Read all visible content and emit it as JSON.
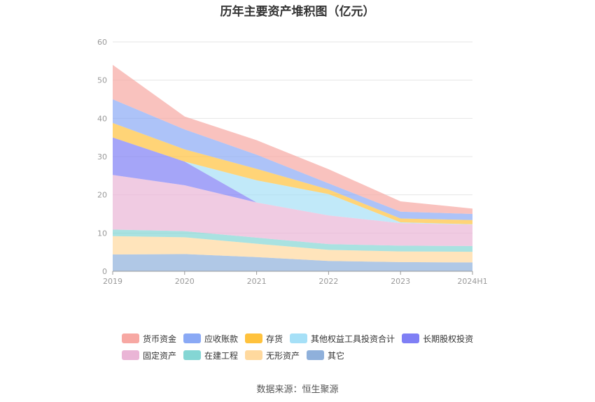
{
  "title": "历年主要资产堆积图（亿元）",
  "source": "数据来源：恒生聚源",
  "chart_data": {
    "type": "area",
    "stacked": true,
    "title": "历年主要资产堆积图（亿元）",
    "x": [
      "2019",
      "2020",
      "2021",
      "2022",
      "2023",
      "2024H1"
    ],
    "ylim": [
      0,
      60
    ],
    "yticks": [
      0,
      10,
      20,
      30,
      40,
      50,
      60
    ],
    "grid": true,
    "legend_position": "bottom",
    "series": [
      {
        "name": "其它",
        "color": "#8fb0db",
        "values": [
          4.4,
          4.5,
          3.7,
          2.7,
          2.4,
          2.3
        ]
      },
      {
        "name": "无形资产",
        "color": "#ffd99e",
        "values": [
          4.8,
          4.4,
          3.5,
          2.9,
          2.8,
          2.8
        ]
      },
      {
        "name": "在建工程",
        "color": "#84d6d4",
        "values": [
          1.7,
          1.6,
          1.6,
          1.5,
          1.5,
          1.5
        ]
      },
      {
        "name": "固定资产",
        "color": "#eab5d6",
        "values": [
          14.3,
          12.0,
          9.2,
          7.5,
          5.9,
          5.6
        ]
      },
      {
        "name": "长期股权投资",
        "color": "#7f7ff5",
        "values": [
          9.8,
          6.2,
          0.0,
          0.0,
          0.0,
          0.0
        ]
      },
      {
        "name": "其他权益工具投资合计",
        "color": "#a6e0f7",
        "values": [
          0.0,
          0.0,
          5.8,
          5.6,
          0.2,
          0.1
        ]
      },
      {
        "name": "存货",
        "color": "#ffc23d",
        "values": [
          3.8,
          3.2,
          3.0,
          1.2,
          1.0,
          1.1
        ]
      },
      {
        "name": "应收账款",
        "color": "#8aa9f5",
        "values": [
          6.2,
          5.2,
          3.7,
          1.6,
          1.8,
          1.6
        ]
      },
      {
        "name": "货币资金",
        "color": "#f7a8a3",
        "values": [
          9.0,
          3.4,
          3.8,
          3.7,
          2.7,
          1.4
        ]
      }
    ]
  }
}
